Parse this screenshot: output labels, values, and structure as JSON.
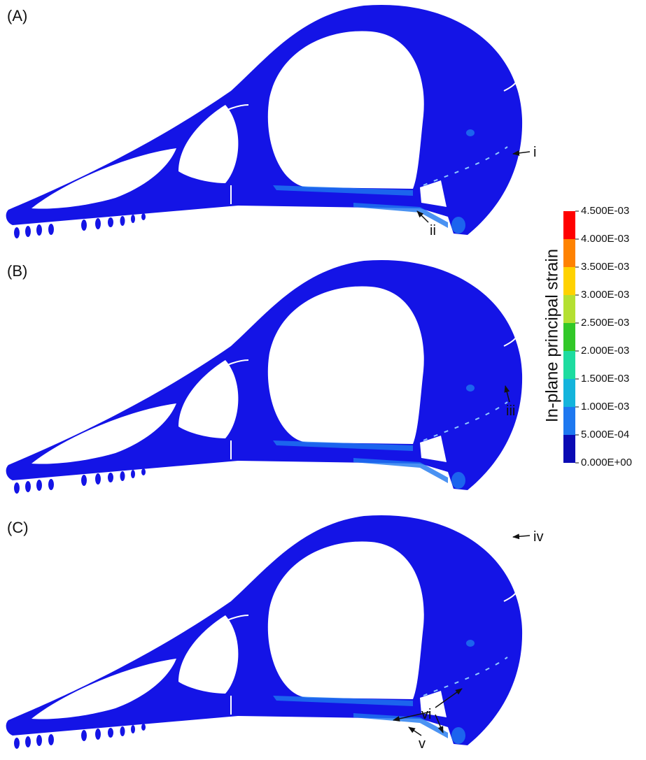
{
  "panels": [
    {
      "label": "(A)",
      "annotations": [
        "i",
        "ii"
      ]
    },
    {
      "label": "(B)",
      "annotations": [
        "iii"
      ]
    },
    {
      "label": "(C)",
      "annotations": [
        "iv",
        "v",
        "vi"
      ]
    }
  ],
  "colorbar": {
    "title": "In-plane principal strain",
    "lim": [
      0,
      0.0045
    ],
    "ticks": [
      {
        "value": 0,
        "label": "0.000E+00"
      },
      {
        "value": 0.0005,
        "label": "5.000E-04"
      },
      {
        "value": 0.001,
        "label": "1.000E-03"
      },
      {
        "value": 0.0015,
        "label": "1.500E-03"
      },
      {
        "value": 0.002,
        "label": "2.000E-03"
      },
      {
        "value": 0.0025,
        "label": "2.500E-03"
      },
      {
        "value": 0.003,
        "label": "3.000E-03"
      },
      {
        "value": 0.0035,
        "label": "3.500E-03"
      },
      {
        "value": 0.004,
        "label": "4.000E-03"
      },
      {
        "value": 0.0045,
        "label": "4.500E-03"
      }
    ],
    "colors": [
      "#0a0ab4",
      "#1e78f0",
      "#14b4dc",
      "#1edca0",
      "#32c828",
      "#b4e032",
      "#ffd200",
      "#ff8200",
      "#ff0000"
    ]
  }
}
